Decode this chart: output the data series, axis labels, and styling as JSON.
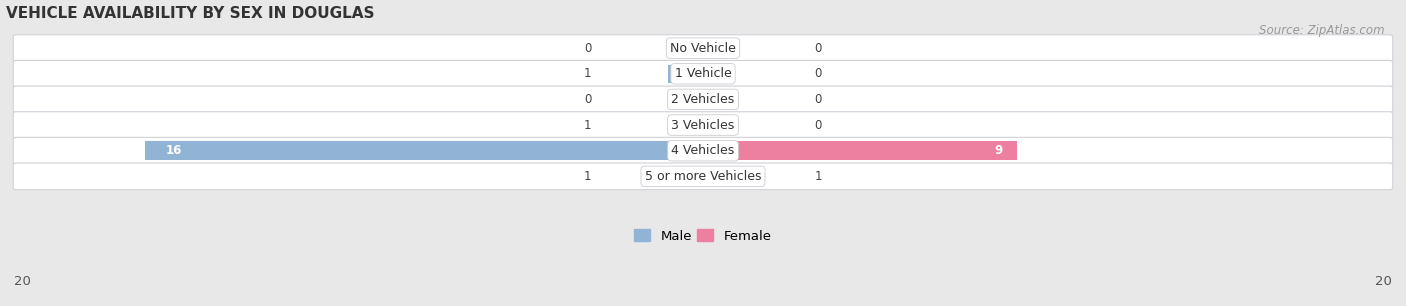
{
  "title": "VEHICLE AVAILABILITY BY SEX IN DOUGLAS",
  "source": "Source: ZipAtlas.com",
  "categories": [
    "No Vehicle",
    "1 Vehicle",
    "2 Vehicles",
    "3 Vehicles",
    "4 Vehicles",
    "5 or more Vehicles"
  ],
  "male_values": [
    0,
    1,
    0,
    1,
    16,
    1
  ],
  "female_values": [
    0,
    0,
    0,
    0,
    9,
    1
  ],
  "male_color": "#92b4d4",
  "female_color": "#ed7fa0",
  "male_label": "Male",
  "female_label": "Female",
  "axis_limit": 20,
  "bar_height": 0.72,
  "background_color": "#e8e8e8",
  "row_light_color": "#f5f5f5",
  "row_dark_color": "#e0e0e8",
  "title_fontsize": 11,
  "source_fontsize": 8.5,
  "tick_fontsize": 9.5,
  "label_fontsize": 9,
  "value_fontsize": 8.5
}
